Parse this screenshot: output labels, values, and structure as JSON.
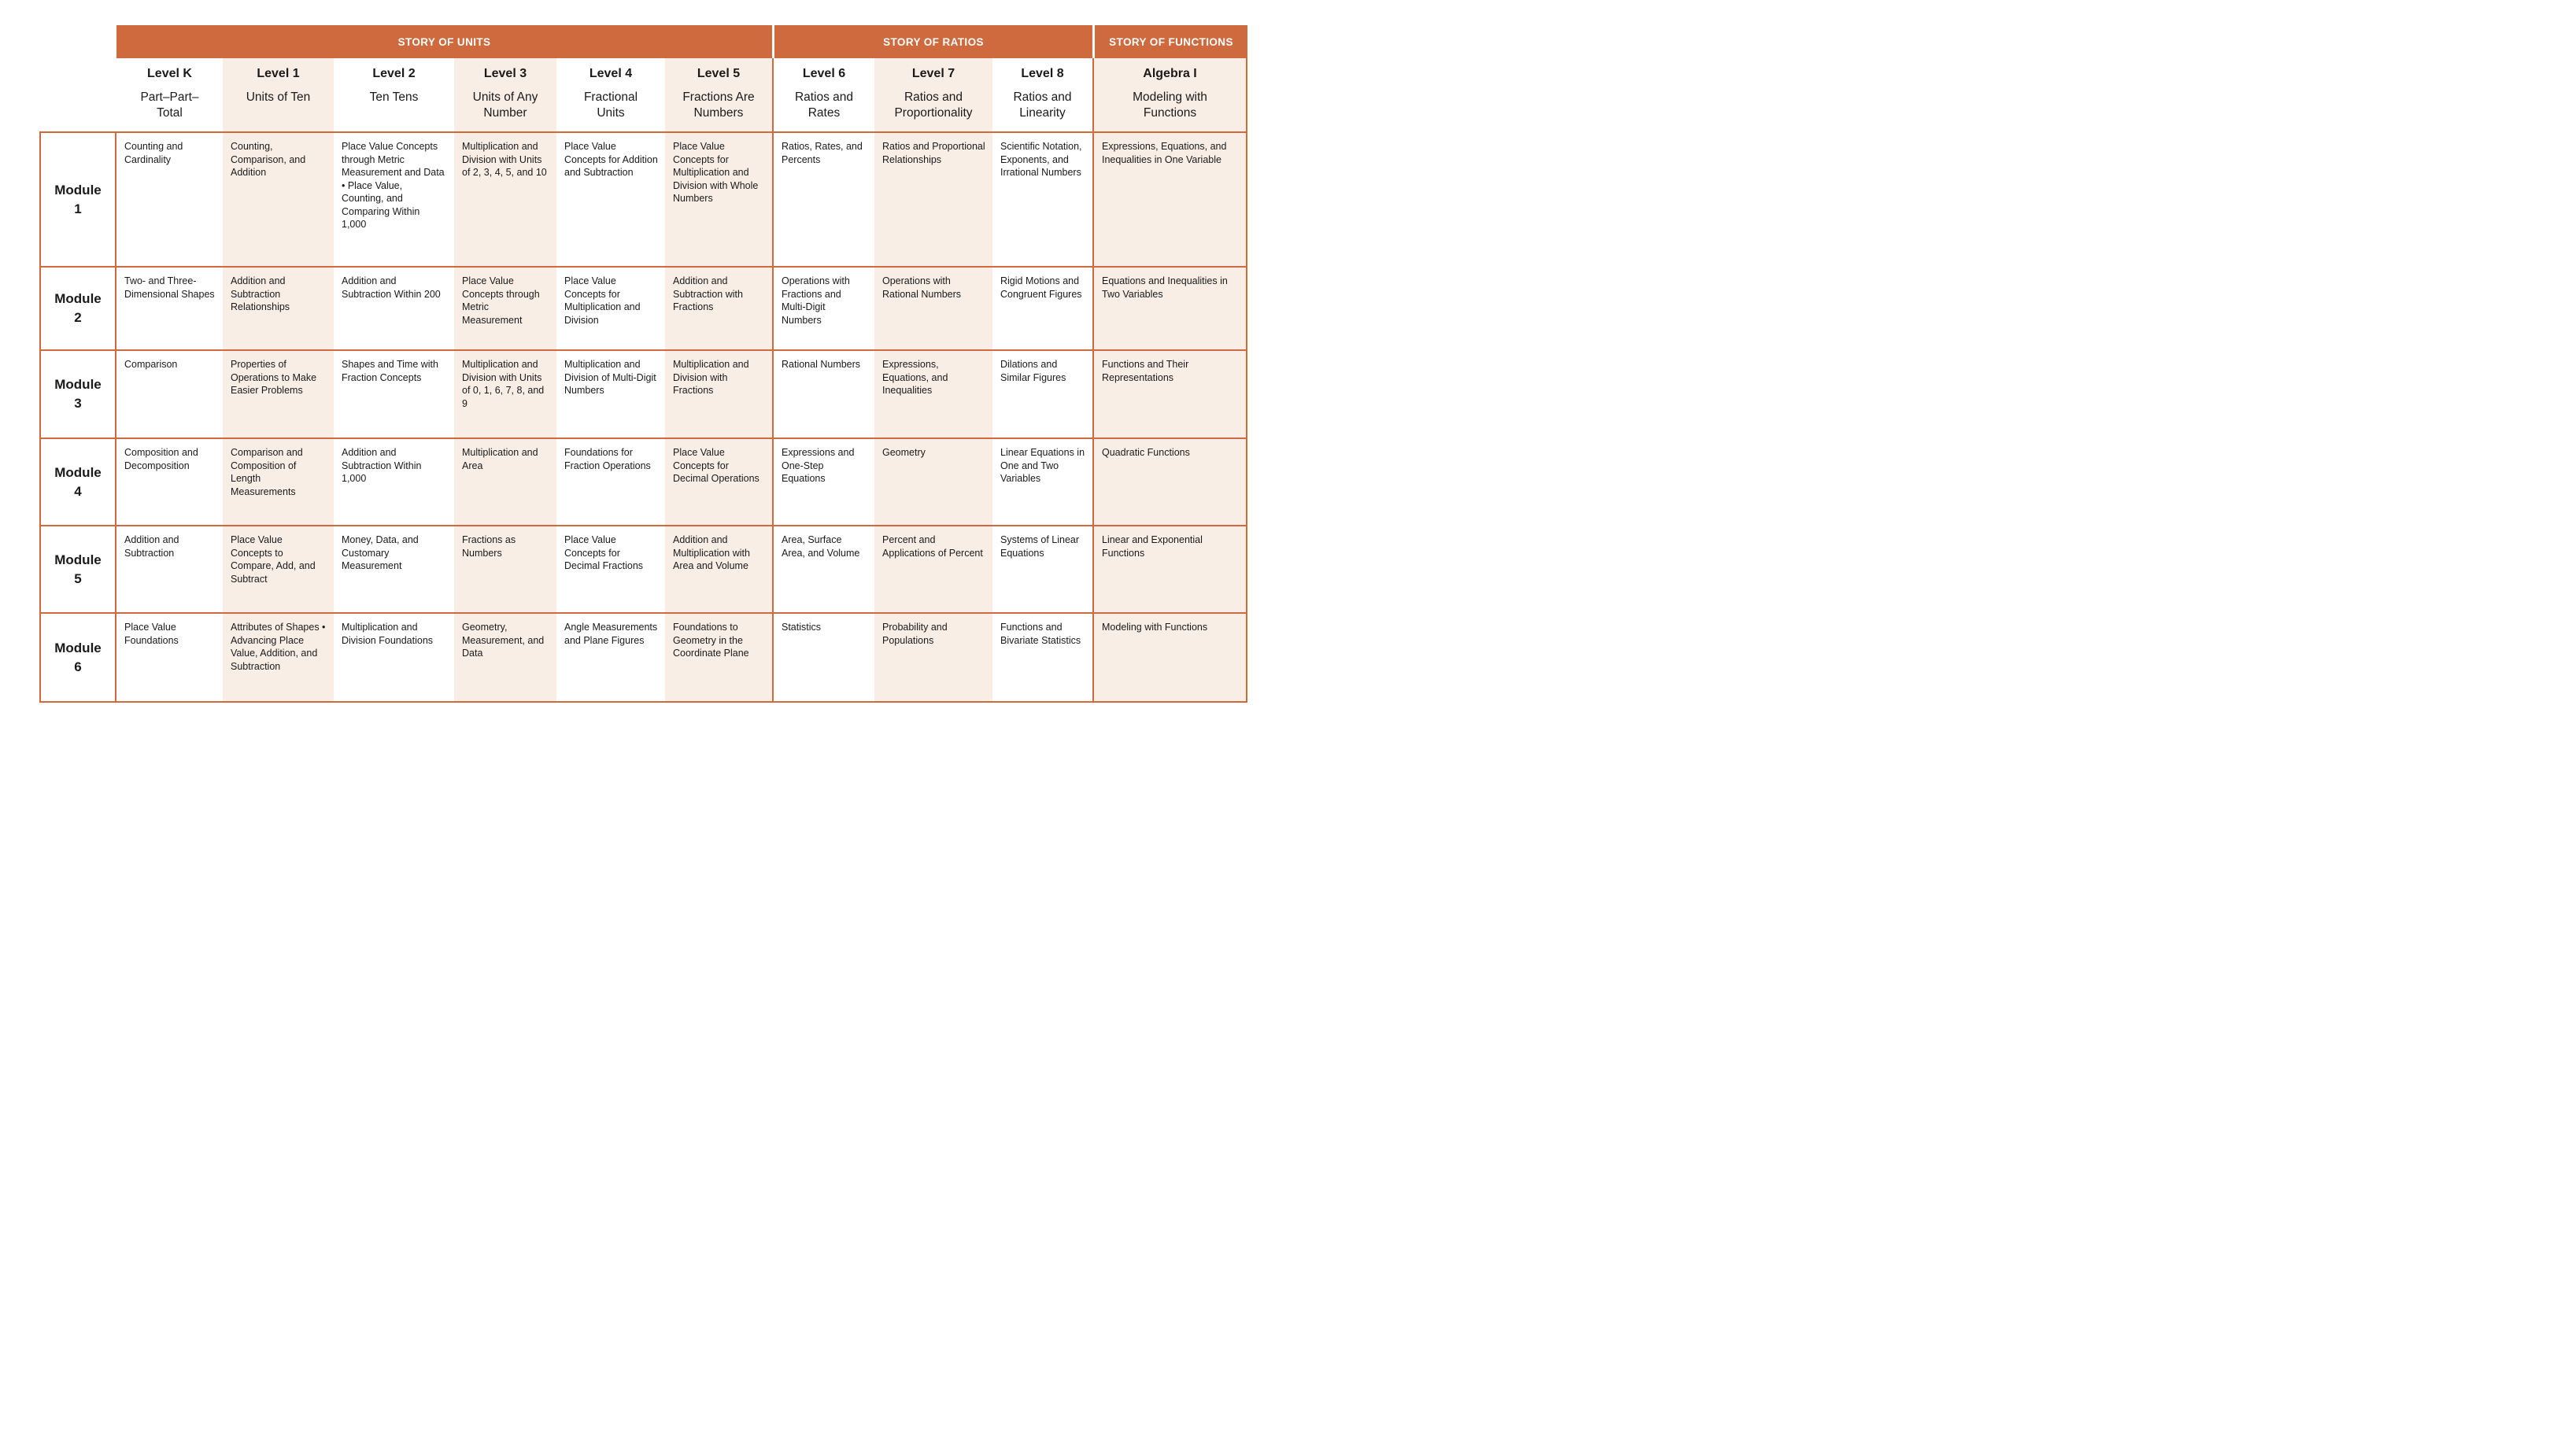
{
  "colors": {
    "accent_orange": "#CE6A3D",
    "peach_column": "#F8EEE6",
    "banner_text": "#FFFFFF",
    "body_text": "#1A1A1A"
  },
  "sections": [
    {
      "label": "STORY OF UNITS"
    },
    {
      "label": "STORY OF RATIOS"
    },
    {
      "label": "STORY OF FUNCTIONS"
    }
  ],
  "levels": [
    {
      "name": "Level K",
      "subtitle": "Part–Part–\nTotal"
    },
    {
      "name": "Level 1",
      "subtitle": "Units of Ten"
    },
    {
      "name": "Level 2",
      "subtitle": "Ten Tens"
    },
    {
      "name": "Level 3",
      "subtitle": "Units of Any\nNumber"
    },
    {
      "name": "Level 4",
      "subtitle": "Fractional\nUnits"
    },
    {
      "name": "Level 5",
      "subtitle": "Fractions Are\nNumbers"
    },
    {
      "name": "Level 6",
      "subtitle": "Ratios and\nRates"
    },
    {
      "name": "Level 7",
      "subtitle": "Ratios and\nProportionality"
    },
    {
      "name": "Level 8",
      "subtitle": "Ratios and\nLinearity"
    },
    {
      "name": "Algebra I",
      "subtitle": "Modeling with\nFunctions"
    }
  ],
  "modules": [
    {
      "label": "Module\n1",
      "cells": [
        "Counting and Cardinality",
        "Counting, Comparison, and Addition",
        "Place Value Concepts through Metric Measurement and Data • Place Value, Counting, and Comparing Within 1,000",
        "Multiplication and Division with Units of 2, 3, 4, 5, and 10",
        "Place Value Concepts for Addition and Subtraction",
        "Place Value Concepts for Multiplication and Division with Whole Numbers",
        "Ratios, Rates, and Percents",
        "Ratios and Proportional Relationships",
        "Scientific Notation, Exponents, and Irrational Numbers",
        "Expressions, Equations, and Inequalities in One Variable"
      ]
    },
    {
      "label": "Module\n2",
      "cells": [
        "Two- and Three-Dimensional Shapes",
        "Addition and Subtraction Relationships",
        "Addition and Subtraction Within 200",
        "Place Value Concepts through Metric Measurement",
        "Place Value Concepts for Multiplication and Division",
        "Addition and Subtraction with Fractions",
        "Operations with Fractions and Multi-Digit Numbers",
        "Operations with Rational Numbers",
        "Rigid Motions and Congruent Figures",
        "Equations and Inequalities in Two Variables"
      ]
    },
    {
      "label": "Module\n3",
      "cells": [
        "Comparison",
        "Properties of Operations to Make Easier Problems",
        "Shapes and Time with Fraction Concepts",
        "Multiplication and Division with Units of 0, 1, 6, 7, 8, and 9",
        "Multiplication and Division of Multi-Digit Numbers",
        "Multiplication and Division with Fractions",
        "Rational Numbers",
        "Expressions, Equations, and Inequalities",
        "Dilations and Similar Figures",
        "Functions and Their Representations"
      ]
    },
    {
      "label": "Module\n4",
      "cells": [
        "Composition and Decomposition",
        "Comparison and Composition of Length Measurements",
        "Addition and Subtraction Within 1,000",
        "Multiplication and Area",
        "Foundations for Fraction Operations",
        "Place Value Concepts for Decimal Operations",
        "Expressions and One-Step Equations",
        "Geometry",
        "Linear Equations in One and Two Variables",
        "Quadratic Functions"
      ]
    },
    {
      "label": "Module\n5",
      "cells": [
        "Addition and Subtraction",
        "Place Value Concepts to Compare, Add, and Subtract",
        "Money, Data, and Customary Measurement",
        "Fractions as Numbers",
        "Place Value Concepts for Decimal Fractions",
        "Addition and Multiplication with Area and Volume",
        "Area, Surface Area, and Volume",
        "Percent and Applications of Percent",
        "Systems of Linear Equations",
        "Linear and Exponential Functions"
      ]
    },
    {
      "label": "Module\n6",
      "cells": [
        "Place Value Foundations",
        "Attributes of Shapes • Advancing Place Value, Addition, and Subtraction",
        "Multiplication and Division Foundations",
        "Geometry, Measurement, and Data",
        "Angle Measurements and Plane Figures",
        "Foundations to Geometry in the Coordinate Plane",
        "Statistics",
        "Probability and Populations",
        "Functions and Bivariate Statistics",
        "Modeling with Functions"
      ]
    }
  ]
}
